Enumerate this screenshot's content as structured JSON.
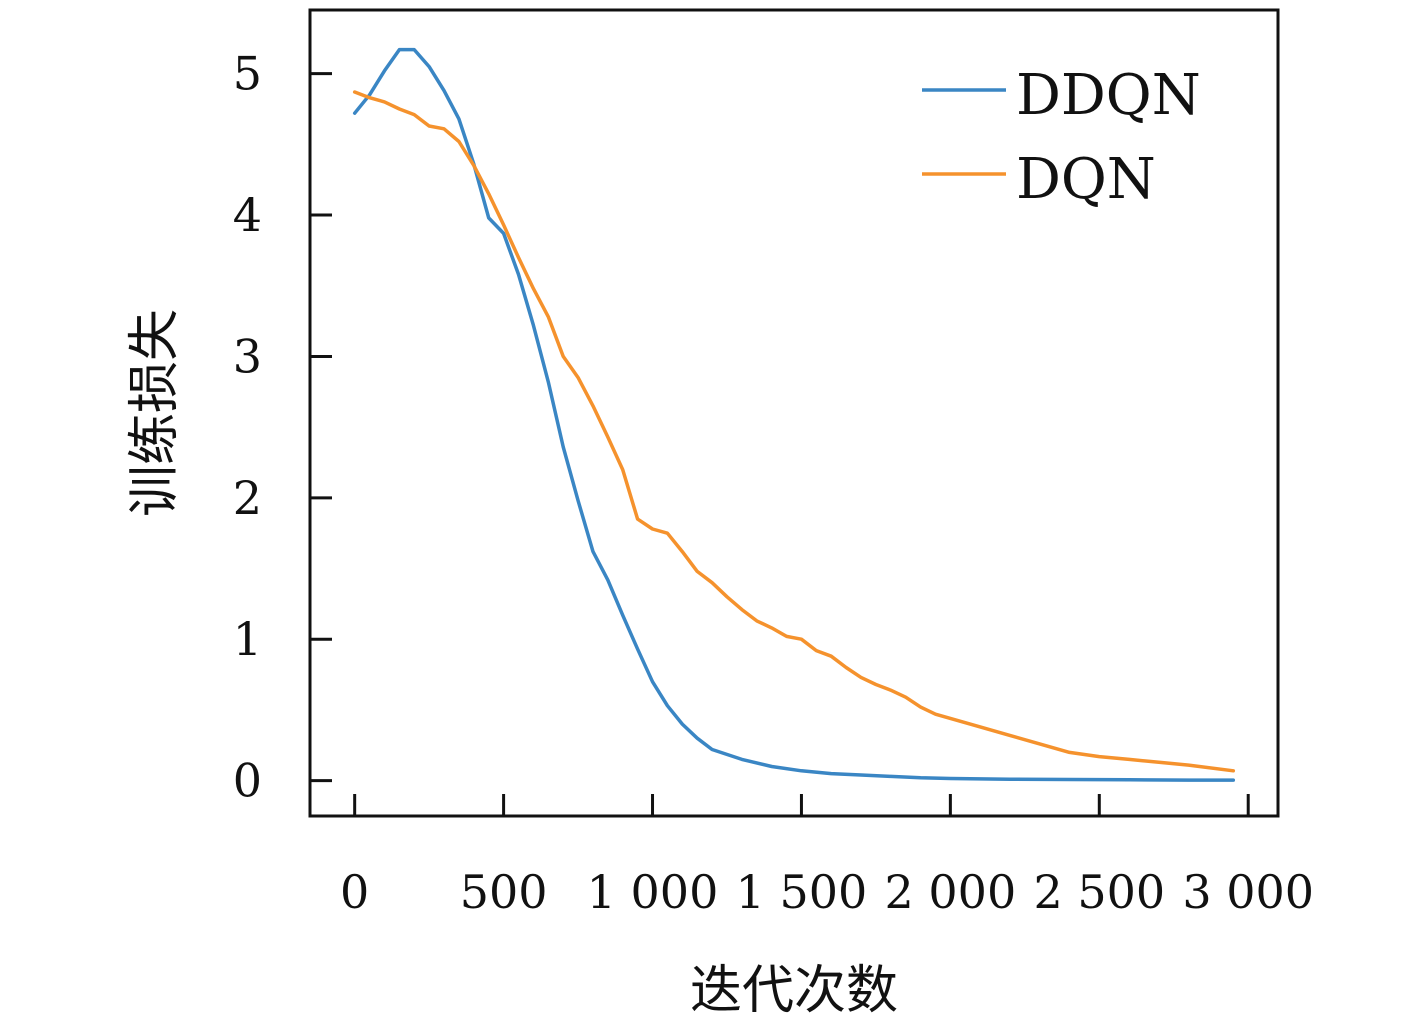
{
  "chart_data": {
    "type": "line",
    "title": "",
    "xlabel": "迭代次数",
    "ylabel": "训练损失",
    "xlim": [
      -150,
      3100
    ],
    "ylim": [
      -0.25,
      5.45
    ],
    "xticks": [
      0,
      500,
      1000,
      1500,
      2000,
      2500,
      3000
    ],
    "xtick_labels": [
      "0",
      "500",
      "1 000",
      "1 500",
      "2 000",
      "2 500",
      "3 000"
    ],
    "yticks": [
      0,
      1,
      2,
      3,
      4,
      5
    ],
    "ytick_labels": [
      "0",
      "1",
      "2",
      "3",
      "4",
      "5"
    ],
    "grid": false,
    "legend_position": "top-right",
    "colors": {
      "ddqn": "#3a86c4",
      "dqn": "#f5922d",
      "axis": "#111111"
    },
    "series": [
      {
        "name": "DDQN",
        "color": "#3a86c4",
        "x": [
          0,
          50,
          100,
          150,
          200,
          250,
          300,
          350,
          400,
          450,
          500,
          550,
          600,
          650,
          700,
          750,
          800,
          850,
          900,
          950,
          1000,
          1050,
          1100,
          1150,
          1200,
          1300,
          1400,
          1500,
          1600,
          1700,
          1800,
          1900,
          2000,
          2200,
          2400,
          2600,
          2800,
          2950
        ],
        "y": [
          4.72,
          4.85,
          5.02,
          5.17,
          5.17,
          5.05,
          4.88,
          4.68,
          4.36,
          3.98,
          3.87,
          3.58,
          3.22,
          2.82,
          2.36,
          1.98,
          1.62,
          1.42,
          1.17,
          0.93,
          0.7,
          0.53,
          0.4,
          0.3,
          0.22,
          0.15,
          0.1,
          0.07,
          0.05,
          0.04,
          0.03,
          0.02,
          0.015,
          0.01,
          0.008,
          0.006,
          0.004,
          0.004
        ]
      },
      {
        "name": "DQN",
        "color": "#f5922d",
        "x": [
          0,
          50,
          100,
          150,
          200,
          250,
          300,
          350,
          400,
          450,
          500,
          550,
          600,
          650,
          700,
          750,
          800,
          850,
          900,
          950,
          1000,
          1050,
          1100,
          1150,
          1200,
          1250,
          1300,
          1350,
          1400,
          1450,
          1500,
          1550,
          1600,
          1650,
          1700,
          1750,
          1800,
          1850,
          1900,
          1950,
          2000,
          2100,
          2200,
          2300,
          2400,
          2500,
          2600,
          2700,
          2800,
          2950
        ],
        "y": [
          4.87,
          4.83,
          4.8,
          4.75,
          4.71,
          4.63,
          4.61,
          4.52,
          4.35,
          4.15,
          3.93,
          3.7,
          3.48,
          3.28,
          3.0,
          2.85,
          2.65,
          2.43,
          2.2,
          1.85,
          1.78,
          1.75,
          1.62,
          1.48,
          1.4,
          1.3,
          1.21,
          1.13,
          1.08,
          1.02,
          1.0,
          0.92,
          0.88,
          0.8,
          0.73,
          0.68,
          0.64,
          0.59,
          0.52,
          0.47,
          0.44,
          0.38,
          0.32,
          0.26,
          0.2,
          0.17,
          0.15,
          0.13,
          0.11,
          0.07
        ]
      }
    ]
  }
}
